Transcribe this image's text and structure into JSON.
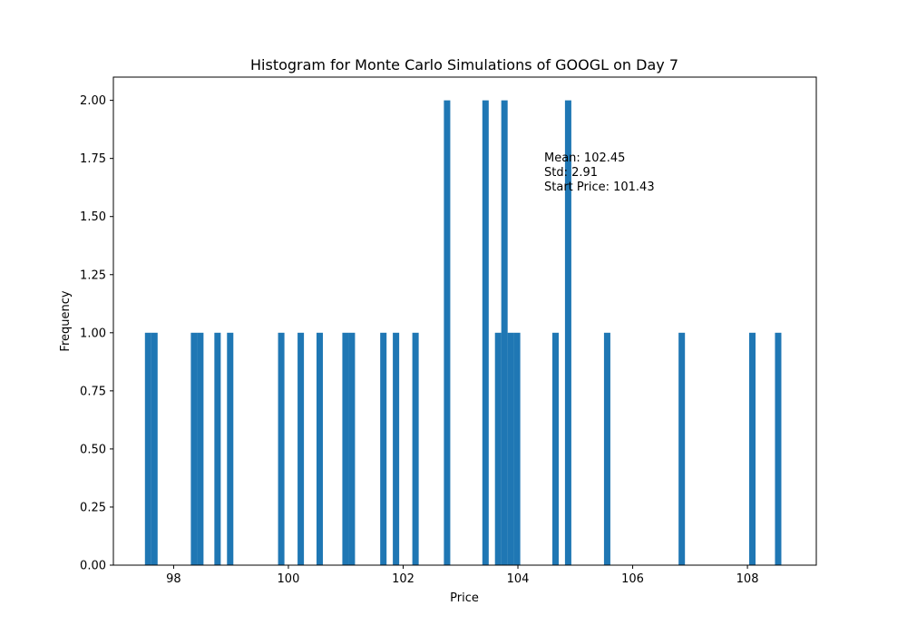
{
  "chart_data": {
    "type": "bar",
    "title": "Histogram for Monte Carlo Simulations of GOOGL on Day 7",
    "xlabel": "Price",
    "ylabel": "Frequency",
    "xlim": [
      96.95,
      109.2
    ],
    "ylim": [
      0,
      2.1
    ],
    "bin_width": 0.111,
    "x_ticks": [
      98,
      100,
      102,
      104,
      106,
      108
    ],
    "x_tick_labels": [
      "98",
      "100",
      "102",
      "104",
      "106",
      "108"
    ],
    "y_ticks": [
      0,
      0.25,
      0.5,
      0.75,
      1.0,
      1.25,
      1.5,
      1.75,
      2.0
    ],
    "y_tick_labels": [
      "0.00",
      "0.25",
      "0.50",
      "0.75",
      "1.00",
      "1.25",
      "1.50",
      "1.75",
      "2.00"
    ],
    "grid": false,
    "bar_color": "#1f77b4",
    "bins": [
      {
        "x": 97.5,
        "count": 1
      },
      {
        "x": 97.61,
        "count": 1
      },
      {
        "x": 98.3,
        "count": 1
      },
      {
        "x": 98.41,
        "count": 1
      },
      {
        "x": 98.71,
        "count": 1
      },
      {
        "x": 98.93,
        "count": 1
      },
      {
        "x": 99.82,
        "count": 1
      },
      {
        "x": 100.16,
        "count": 1
      },
      {
        "x": 100.49,
        "count": 1
      },
      {
        "x": 100.94,
        "count": 1
      },
      {
        "x": 101.05,
        "count": 1
      },
      {
        "x": 101.6,
        "count": 1
      },
      {
        "x": 101.82,
        "count": 1
      },
      {
        "x": 102.16,
        "count": 1
      },
      {
        "x": 102.71,
        "count": 2
      },
      {
        "x": 103.38,
        "count": 2
      },
      {
        "x": 103.6,
        "count": 1
      },
      {
        "x": 103.71,
        "count": 2
      },
      {
        "x": 103.82,
        "count": 1
      },
      {
        "x": 103.93,
        "count": 1
      },
      {
        "x": 104.6,
        "count": 1
      },
      {
        "x": 104.82,
        "count": 2
      },
      {
        "x": 105.5,
        "count": 1
      },
      {
        "x": 106.8,
        "count": 1
      },
      {
        "x": 108.03,
        "count": 1
      },
      {
        "x": 108.48,
        "count": 1
      }
    ],
    "annotation": [
      "Mean: 102.45",
      "Std: 2.91",
      "Start Price: 101.43"
    ]
  }
}
